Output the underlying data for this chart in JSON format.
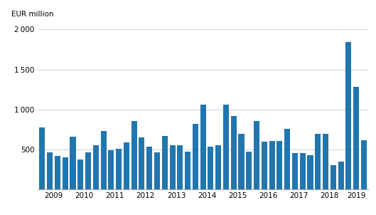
{
  "values": [
    775,
    460,
    420,
    400,
    660,
    370,
    460,
    550,
    725,
    490,
    510,
    590,
    850,
    650,
    535,
    460,
    670,
    555,
    555,
    470,
    820,
    1060,
    535,
    555,
    1060,
    920,
    695,
    470,
    850,
    595,
    600,
    600,
    755,
    455,
    455,
    430,
    695,
    690,
    305,
    345,
    1840,
    1280,
    610
  ],
  "years": [
    2009,
    2010,
    2011,
    2012,
    2013,
    2014,
    2015,
    2016,
    2017,
    2018,
    2019
  ],
  "bar_color": "#2176ae",
  "ylabel": "EUR million",
  "ylim": [
    0,
    2100
  ],
  "yticks": [
    0,
    500,
    1000,
    1500,
    2000
  ],
  "background_color": "#ffffff",
  "grid_color": "#d0d0d0"
}
